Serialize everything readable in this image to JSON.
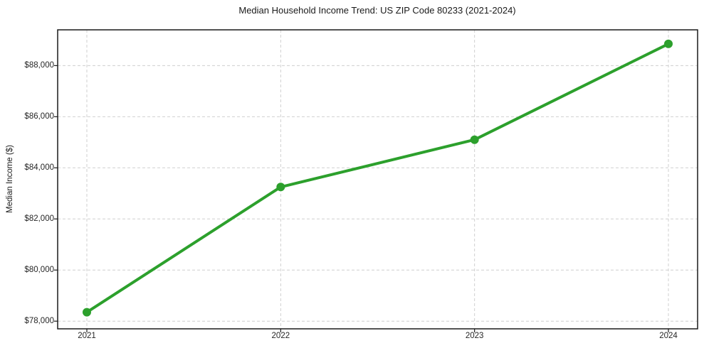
{
  "chart_data": {
    "type": "line",
    "title": "Median Household Income Trend: US ZIP Code 80233 (2021-2024)",
    "xlabel": "",
    "ylabel": "Median Income ($)",
    "categories": [
      "2021",
      "2022",
      "2023",
      "2024"
    ],
    "series": [
      {
        "name": "Median Household Income",
        "values": [
          78350,
          83250,
          85100,
          88850
        ]
      }
    ],
    "ytick_values": [
      78000,
      80000,
      82000,
      84000,
      86000,
      88000
    ],
    "ytick_labels": [
      "$78,000",
      "$80,000",
      "$82,000",
      "$84,000",
      "$86,000",
      "$88,000"
    ],
    "ylim": [
      77700,
      89400
    ],
    "grid": "dashed-both-axes",
    "legend_position": "none",
    "colors": {
      "line": "#2ca02c",
      "marker": "#2ca02c",
      "gridline": "#cfcfcf",
      "frame": "#1a1a1a",
      "background": "#ffffff"
    },
    "marker": "circle"
  }
}
